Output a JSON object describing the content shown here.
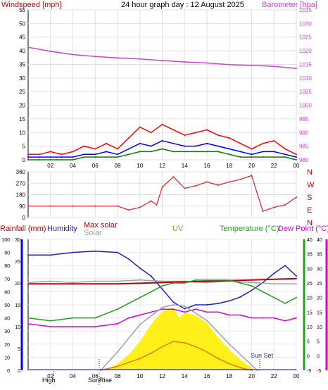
{
  "header": {
    "title": "24 hour graph day : 12 August 2025",
    "left_axis_label": "Windspeed [mph]",
    "right_axis_label": "Barometer [hpa]"
  },
  "direction_labels": [
    "N",
    "W",
    "S",
    "E",
    "N"
  ],
  "lower_labels": {
    "rainfall": "Rainfall (mm)",
    "humidity": "Humidity",
    "max_solar": "Max solar",
    "solar": "Solar",
    "uv": "UV",
    "temperature": "Temperature (°C)",
    "dew_point": "Dew Point (°C)",
    "high_marker": "High",
    "sunrise_marker": "SunRise",
    "sunset_marker": "Sun Set"
  },
  "colors": {
    "wind_gust": "#ff0000",
    "wind_avg": "#0000ff",
    "wind_low": "#008000",
    "barometer": "#cc44cc",
    "direction": "#e02020",
    "humidity": "#2020c0",
    "temperature": "#20a020",
    "dew_point": "#dd00dd",
    "max_solar": "#c00000",
    "solar_line": "#a0a0a0",
    "solar_fill": "#ffee00",
    "uv": "#e08000",
    "rainfall_axis": "#0000ff"
  },
  "chart_data": [
    {
      "type": "line",
      "x_ticks": [
        "02",
        "04",
        "06",
        "08",
        "10",
        "12",
        "14",
        "16",
        "18",
        "20",
        "22",
        "00"
      ],
      "xlim": [
        0,
        24
      ],
      "ylim": [
        0,
        55
      ],
      "y_ticks": [
        0,
        5,
        10,
        15,
        20,
        25,
        30,
        35,
        40,
        45,
        50,
        55
      ],
      "y2lim": [
        980,
        1035
      ],
      "y2_ticks": [
        980,
        985,
        990,
        995,
        1000,
        1005,
        1010,
        1015,
        1020,
        1025,
        1030,
        1035
      ],
      "series": [
        {
          "key": "gust",
          "x": [
            0,
            1,
            2,
            3,
            4,
            5,
            6,
            7,
            8,
            9,
            10,
            11,
            12,
            13,
            14,
            15,
            16,
            17,
            18,
            19,
            20,
            21,
            22,
            23,
            24
          ],
          "values": [
            2,
            2,
            3,
            2,
            3,
            5,
            4,
            6,
            4,
            8,
            12,
            10,
            13,
            11,
            9,
            10,
            11,
            9,
            8,
            6,
            4,
            6,
            7,
            4,
            2
          ]
        },
        {
          "key": "avg",
          "x": [
            0,
            1,
            2,
            3,
            4,
            5,
            6,
            7,
            8,
            9,
            10,
            11,
            12,
            13,
            14,
            15,
            16,
            17,
            18,
            19,
            20,
            21,
            22,
            23,
            24
          ],
          "values": [
            1,
            1,
            1,
            1,
            1,
            2,
            2,
            3,
            2,
            4,
            6,
            5,
            7,
            6,
            5,
            5,
            6,
            5,
            4,
            3,
            2,
            3,
            3,
            2,
            1
          ]
        },
        {
          "key": "low",
          "x": [
            0,
            1,
            2,
            3,
            4,
            5,
            6,
            7,
            8,
            9,
            10,
            11,
            12,
            13,
            14,
            15,
            16,
            17,
            18,
            19,
            20,
            21,
            22,
            23,
            24
          ],
          "values": [
            0,
            0,
            0,
            0,
            0,
            1,
            1,
            1,
            1,
            2,
            3,
            3,
            4,
            3,
            3,
            3,
            3,
            3,
            2,
            1,
            1,
            1,
            1,
            1,
            0
          ]
        },
        {
          "key": "barometer",
          "axis": "y2",
          "x": [
            0,
            2,
            4,
            6,
            8,
            10,
            12,
            14,
            16,
            18,
            20,
            22,
            24
          ],
          "values": [
            1021.3,
            1019.8,
            1018.6,
            1017.9,
            1017.4,
            1017.0,
            1016.4,
            1015.9,
            1015.5,
            1014.9,
            1014.6,
            1014.3,
            1013.5
          ]
        }
      ]
    },
    {
      "type": "line",
      "ylim": [
        0,
        360
      ],
      "y_ticks": [
        0,
        90,
        180,
        270,
        360
      ],
      "series": [
        {
          "key": "direction",
          "x": [
            0,
            2,
            4,
            6,
            8,
            9,
            10,
            11,
            11.5,
            12,
            13,
            14,
            15,
            16,
            17,
            18,
            19,
            20,
            21,
            22,
            23,
            24
          ],
          "values": [
            90,
            90,
            90,
            90,
            90,
            60,
            80,
            130,
            100,
            240,
            320,
            230,
            250,
            280,
            255,
            280,
            300,
            330,
            50,
            80,
            100,
            160
          ]
        }
      ]
    },
    {
      "type": "line",
      "x_ticks": [
        "02",
        "04",
        "06",
        "08",
        "10",
        "12",
        "14",
        "16",
        "18",
        "20",
        "22",
        "00"
      ],
      "xlim": [
        0,
        24
      ],
      "ylim_humidity": [
        0,
        100
      ],
      "humidity_ticks": [
        0,
        5,
        10,
        15,
        20,
        25,
        30,
        35,
        40,
        45,
        50,
        55,
        60,
        65,
        70,
        75,
        80,
        85,
        90,
        95,
        100
      ],
      "ylim_rain": [
        0,
        30
      ],
      "rain_ticks": [
        0,
        5,
        10,
        15,
        20,
        25,
        30
      ],
      "ylim_temp": [
        -5,
        40
      ],
      "temp_ticks": [
        -5,
        0,
        5,
        10,
        15,
        20,
        25,
        30,
        35,
        40
      ],
      "series": [
        {
          "key": "humidity",
          "axis": "humidity",
          "x": [
            0,
            2,
            4,
            6,
            8,
            9,
            10,
            11,
            12,
            13,
            14,
            15,
            16,
            17,
            18,
            19,
            20,
            21,
            22,
            23,
            24
          ],
          "values": [
            88,
            88,
            90,
            91,
            90,
            85,
            78,
            72,
            62,
            52,
            47,
            50,
            50,
            51,
            53,
            56,
            61,
            67,
            74,
            80,
            72
          ]
        },
        {
          "key": "solar_line",
          "axis": "humidity",
          "x": [
            0,
            2,
            4,
            6,
            8,
            10,
            12,
            14,
            16,
            18,
            20,
            22,
            24
          ],
          "values": [
            67,
            68,
            67,
            68,
            68,
            69,
            68,
            68,
            67,
            68,
            67,
            66,
            66
          ]
        },
        {
          "key": "max_solar",
          "axis": "humidity",
          "x": [
            0,
            4,
            8,
            12,
            16,
            20,
            24
          ],
          "values": [
            66,
            66,
            66,
            67,
            68,
            69,
            70
          ]
        },
        {
          "key": "temperature",
          "axis": "temp",
          "x": [
            0,
            2,
            4,
            6,
            8,
            9,
            10,
            11,
            12,
            13,
            14,
            15,
            16,
            17,
            18,
            19,
            20,
            21,
            22,
            23,
            24
          ],
          "values": [
            13,
            12,
            13,
            13,
            16,
            18,
            20,
            22,
            24,
            25,
            25,
            26,
            26,
            26,
            26,
            25,
            24,
            22,
            20,
            18,
            20
          ]
        },
        {
          "key": "dew_point",
          "axis": "temp",
          "x": [
            0,
            2,
            4,
            6,
            8,
            9,
            10,
            11,
            12,
            13,
            14,
            15,
            16,
            17,
            18,
            19,
            20,
            21,
            22,
            23,
            24
          ],
          "values": [
            11,
            10,
            10,
            10,
            11,
            13,
            14,
            15,
            16,
            16,
            15,
            16,
            15,
            15,
            14,
            14,
            13,
            13,
            13,
            12,
            13
          ]
        },
        {
          "key": "solar_fill",
          "axis": "humidity",
          "x": [
            6.5,
            7,
            8,
            9,
            10,
            11,
            12,
            13,
            13.5,
            14,
            15,
            16,
            17,
            18,
            19,
            20,
            20.5
          ],
          "values": [
            0,
            1,
            5,
            12,
            22,
            35,
            45,
            48,
            40,
            44,
            42,
            36,
            25,
            16,
            8,
            2,
            0
          ]
        },
        {
          "key": "max_solar_curve",
          "axis": "humidity",
          "x": [
            6.5,
            8,
            10,
            12,
            13,
            14,
            16,
            18,
            20,
            20.5
          ],
          "values": [
            0,
            14,
            35,
            48,
            50,
            49,
            38,
            20,
            4,
            0
          ]
        },
        {
          "key": "uv",
          "axis": "humidity",
          "x": [
            6.5,
            8,
            9,
            10,
            11,
            12,
            13,
            14,
            15,
            16,
            17,
            18,
            19,
            20
          ],
          "values": [
            0,
            3,
            6,
            9,
            13,
            18,
            22,
            21,
            18,
            14,
            9,
            5,
            2,
            0
          ]
        }
      ]
    }
  ]
}
